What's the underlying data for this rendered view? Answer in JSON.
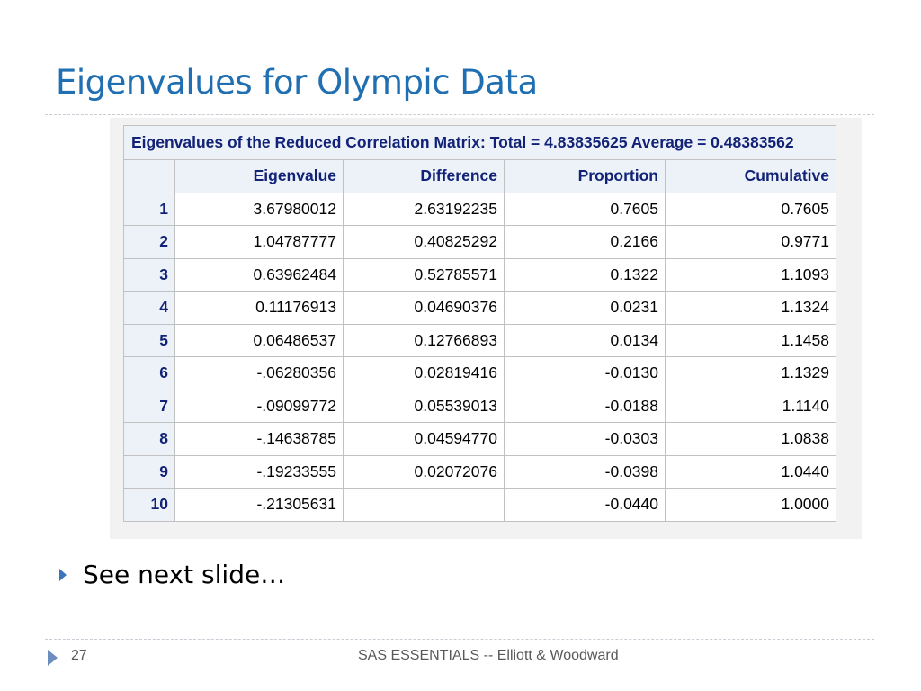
{
  "slide": {
    "title": "Eigenvalues for Olympic Data",
    "bullet": "See next slide…",
    "page_number": "27",
    "footer": "SAS ESSENTIALS -- Elliott & Woodward"
  },
  "table": {
    "caption": "Eigenvalues of the Reduced Correlation Matrix: Total = 4.83835625 Average = 0.48383562",
    "columns": [
      "",
      "Eigenvalue",
      "Difference",
      "Proportion",
      "Cumulative"
    ],
    "rows": [
      [
        "1",
        "3.67980012",
        "2.63192235",
        "0.7605",
        "0.7605"
      ],
      [
        "2",
        "1.04787777",
        "0.40825292",
        "0.2166",
        "0.9771"
      ],
      [
        "3",
        "0.63962484",
        "0.52785571",
        "0.1322",
        "1.1093"
      ],
      [
        "4",
        "0.11176913",
        "0.04690376",
        "0.0231",
        "1.1324"
      ],
      [
        "5",
        "0.06486537",
        "0.12766893",
        "0.0134",
        "1.1458"
      ],
      [
        "6",
        "-.06280356",
        "0.02819416",
        "-0.0130",
        "1.1329"
      ],
      [
        "7",
        "-.09099772",
        "0.05539013",
        "-0.0188",
        "1.1140"
      ],
      [
        "8",
        "-.14638785",
        "0.04594770",
        "-0.0303",
        "1.0838"
      ],
      [
        "9",
        "-.19233555",
        "0.02072076",
        "-0.0398",
        "1.0440"
      ],
      [
        "10",
        "-.21305631",
        "",
        "-0.0440",
        "1.0000"
      ]
    ]
  },
  "colors": {
    "title": "#1f6fb2",
    "header_bg": "#edf2f9",
    "header_text": "#112277",
    "bullet_arrow": "#3b74b8"
  },
  "icons": {
    "bullet": "triangle-right-icon",
    "footer": "triangle-right-icon"
  }
}
